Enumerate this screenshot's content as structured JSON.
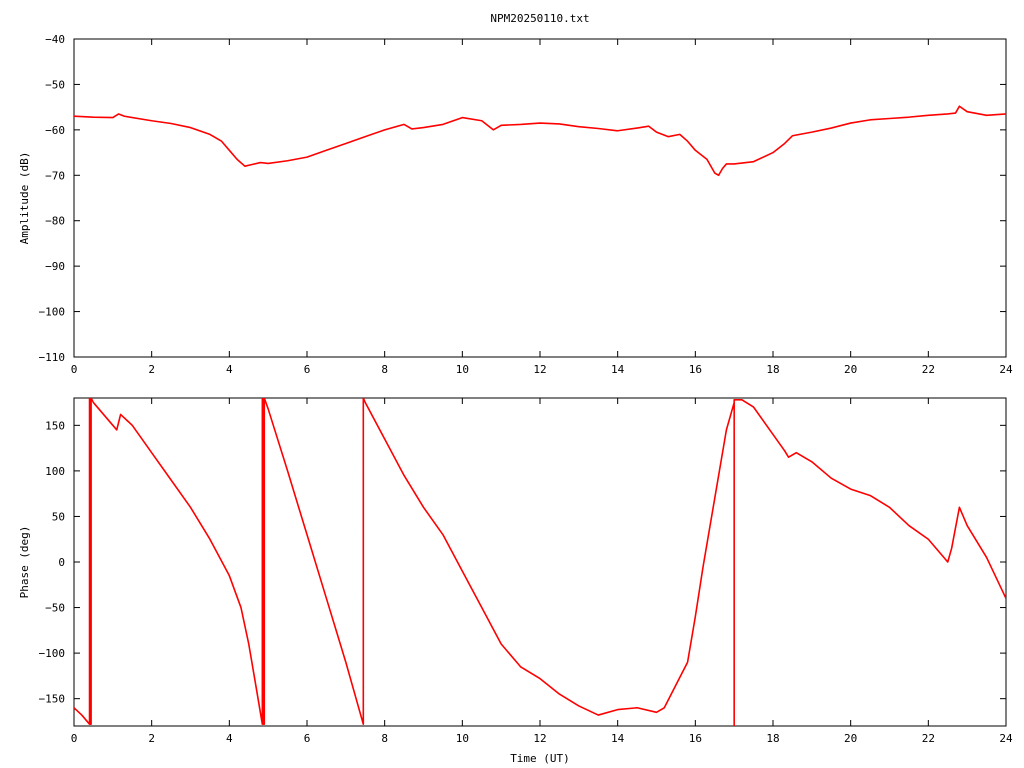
{
  "chart_data": [
    {
      "type": "line",
      "title": "NPM20250110.txt",
      "xlabel": "",
      "ylabel": "Amplitude (dB)",
      "xlim": [
        0,
        24
      ],
      "ylim": [
        -110,
        -40
      ],
      "xticks": [
        "0",
        "2",
        "4",
        "6",
        "8",
        "10",
        "12",
        "14",
        "16",
        "18",
        "20",
        "22",
        "24"
      ],
      "yticks": [
        "-40",
        "-50",
        "-60",
        "-70",
        "-80",
        "-90",
        "-100",
        "-110"
      ],
      "color": "#ff0000",
      "x": [
        0.0,
        0.5,
        1.0,
        1.15,
        1.3,
        2.0,
        2.5,
        3.0,
        3.5,
        3.8,
        4.0,
        4.2,
        4.4,
        4.6,
        4.8,
        5.0,
        5.5,
        6.0,
        6.5,
        7.0,
        7.5,
        8.0,
        8.5,
        8.7,
        9.0,
        9.5,
        10.0,
        10.5,
        10.8,
        11.0,
        11.5,
        12.0,
        12.5,
        13.0,
        13.5,
        14.0,
        14.5,
        14.8,
        15.0,
        15.3,
        15.6,
        15.8,
        16.0,
        16.3,
        16.5,
        16.6,
        16.7,
        16.8,
        17.0,
        17.5,
        18.0,
        18.3,
        18.5,
        19.0,
        19.5,
        20.0,
        20.5,
        21.0,
        21.5,
        22.0,
        22.5,
        22.7,
        22.8,
        23.0,
        23.5,
        24.0
      ],
      "y": [
        -57.0,
        -57.2,
        -57.3,
        -56.5,
        -57.0,
        -58.0,
        -58.6,
        -59.5,
        -61.0,
        -62.5,
        -64.5,
        -66.5,
        -68.0,
        -67.6,
        -67.2,
        -67.4,
        -66.8,
        -66.0,
        -64.5,
        -63.0,
        -61.5,
        -60.0,
        -58.8,
        -59.8,
        -59.5,
        -58.8,
        -57.3,
        -58.0,
        -60.0,
        -59.0,
        -58.8,
        -58.5,
        -58.7,
        -59.3,
        -59.7,
        -60.2,
        -59.6,
        -59.2,
        -60.5,
        -61.5,
        -61.0,
        -62.5,
        -64.5,
        -66.5,
        -69.5,
        -70.0,
        -68.5,
        -67.5,
        -67.5,
        -67.0,
        -65.0,
        -63.0,
        -61.3,
        -60.5,
        -59.6,
        -58.5,
        -57.8,
        -57.5,
        -57.2,
        -56.8,
        -56.5,
        -56.3,
        -54.8,
        -56.0,
        -56.8,
        -56.5
      ]
    },
    {
      "type": "line",
      "title": "",
      "xlabel": "Time (UT)",
      "ylabel": "Phase (deg)",
      "xlim": [
        0,
        24
      ],
      "ylim": [
        -180,
        180
      ],
      "xticks": [
        "0",
        "2",
        "4",
        "6",
        "8",
        "10",
        "12",
        "14",
        "16",
        "18",
        "20",
        "22",
        "24"
      ],
      "yticks": [
        "150",
        "100",
        "50",
        "0",
        "-50",
        "-100",
        "-150"
      ],
      "color": "#ff0000",
      "x": [
        0.0,
        0.2,
        0.4,
        0.4,
        0.42,
        0.42,
        0.44,
        0.44,
        0.5,
        1.0,
        1.1,
        1.2,
        1.5,
        2.0,
        2.5,
        3.0,
        3.5,
        4.0,
        4.3,
        4.5,
        4.7,
        4.85,
        4.85,
        4.88,
        4.88,
        4.9,
        4.9,
        5.0,
        5.5,
        6.0,
        6.5,
        7.0,
        7.45,
        7.45,
        7.5,
        8.0,
        8.5,
        9.0,
        9.5,
        10.0,
        10.5,
        11.0,
        11.5,
        12.0,
        12.5,
        13.0,
        13.5,
        14.0,
        14.5,
        15.0,
        15.2,
        15.5,
        15.8,
        16.0,
        16.2,
        16.5,
        16.8,
        17.0,
        17.0,
        17.0,
        17.2,
        17.5,
        18.0,
        18.3,
        18.4,
        18.6,
        19.0,
        19.5,
        20.0,
        20.5,
        21.0,
        21.5,
        22.0,
        22.5,
        22.6,
        22.8,
        23.0,
        23.5,
        24.0
      ],
      "y": [
        -160,
        -168,
        -178,
        180,
        180,
        -178,
        -178,
        180,
        175,
        150,
        145,
        162,
        150,
        120,
        90,
        60,
        25,
        -15,
        -50,
        -90,
        -140,
        -178,
        180,
        180,
        -178,
        -178,
        180,
        168,
        100,
        30,
        -40,
        -110,
        -178,
        180,
        175,
        135,
        95,
        60,
        30,
        -10,
        -50,
        -90,
        -115,
        -128,
        -145,
        -158,
        -168,
        -162,
        -160,
        -165,
        -160,
        -135,
        -110,
        -60,
        -5,
        70,
        145,
        175,
        -180,
        178,
        178,
        170,
        140,
        122,
        115,
        120,
        110,
        92,
        80,
        73,
        60,
        40,
        25,
        0,
        15,
        60,
        40,
        5,
        -40
      ]
    }
  ]
}
